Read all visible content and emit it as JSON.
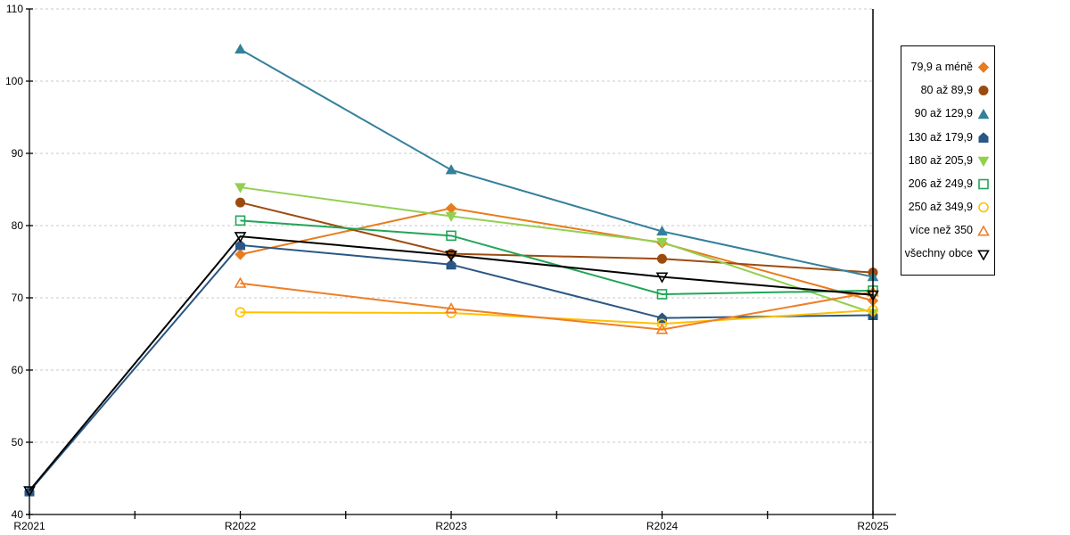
{
  "chart_data": {
    "type": "line",
    "title": "",
    "xlabel": "",
    "ylabel": "",
    "categories": [
      "R2021",
      "R2022",
      "R2023",
      "R2024",
      "R2025"
    ],
    "series": [
      {
        "name": "79,9 a méně",
        "color": "#E87C1E",
        "marker": "diamond",
        "marker_fill": "filled",
        "values": [
          null,
          76.0,
          82.4,
          77.6,
          69.6
        ]
      },
      {
        "name": "80 až 89,9",
        "color": "#9C4B0F",
        "marker": "circle",
        "marker_fill": "filled",
        "values": [
          null,
          83.2,
          76.1,
          75.4,
          73.5
        ]
      },
      {
        "name": "90 až 129,9",
        "color": "#35809B",
        "marker": "triangle-up",
        "marker_fill": "filled",
        "values": [
          null,
          104.4,
          87.7,
          79.2,
          72.9
        ]
      },
      {
        "name": "130 až 179,9",
        "color": "#2A5783",
        "marker": "pentagon",
        "marker_fill": "filled",
        "values": [
          43.2,
          77.3,
          74.6,
          67.2,
          67.6
        ]
      },
      {
        "name": "180 až 205,9",
        "color": "#92D050",
        "marker": "triangle-down",
        "marker_fill": "filled",
        "values": [
          null,
          85.3,
          81.3,
          77.7,
          67.9
        ]
      },
      {
        "name": "206 až 249,9",
        "color": "#21A657",
        "marker": "square",
        "marker_fill": "open",
        "values": [
          null,
          80.7,
          78.6,
          70.5,
          71.0
        ]
      },
      {
        "name": "250 až 349,9",
        "color": "#FFC000",
        "marker": "circle",
        "marker_fill": "open",
        "values": [
          null,
          68.0,
          67.9,
          66.4,
          68.3
        ]
      },
      {
        "name": "více než 350",
        "color": "#F07E26",
        "marker": "triangle-up",
        "marker_fill": "open",
        "values": [
          null,
          72.0,
          68.5,
          65.6,
          70.8
        ]
      },
      {
        "name": "všechny obce",
        "color": "#000000",
        "marker": "triangle-down",
        "marker_fill": "open",
        "values": [
          43.3,
          78.5,
          75.9,
          72.9,
          70.4
        ]
      }
    ],
    "ylim": [
      40,
      110
    ],
    "yticks": [
      40,
      50,
      60,
      70,
      80,
      90,
      100,
      110
    ],
    "grid": "horizontal-dashed",
    "legend_position": "right"
  },
  "colors": {
    "gridline": "#C9C9C9",
    "axis": "#000000",
    "background": "#FFFFFF"
  }
}
